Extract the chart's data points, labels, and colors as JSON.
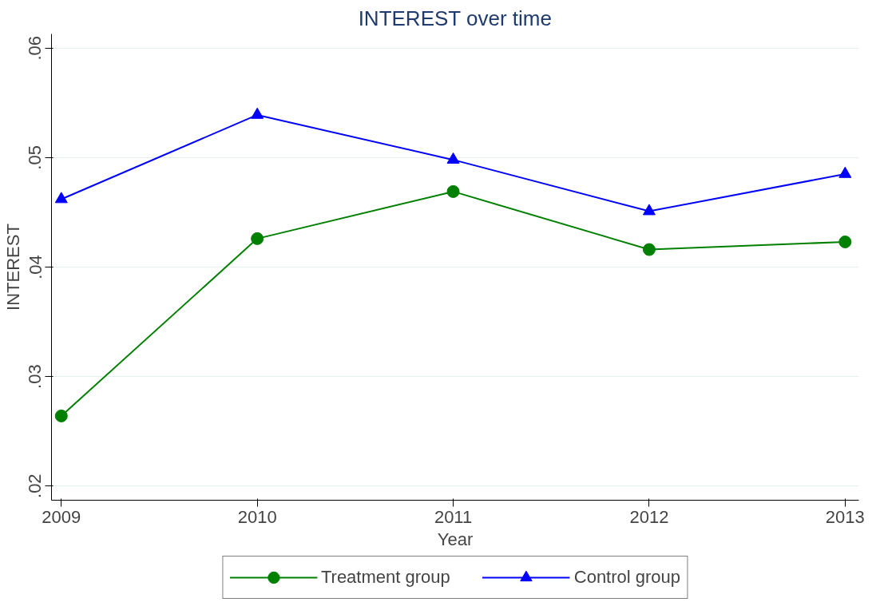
{
  "chart_data": {
    "type": "line",
    "title": "INTEREST over time",
    "xlabel": "Year",
    "ylabel": "INTEREST",
    "x": [
      2009,
      2010,
      2011,
      2012,
      2013
    ],
    "series": [
      {
        "name": "Treatment group",
        "color": "#008000",
        "marker": "circle",
        "values": [
          0.0264,
          0.0426,
          0.0469,
          0.0416,
          0.0423
        ]
      },
      {
        "name": "Control group",
        "color": "#0000ff",
        "marker": "triangle",
        "values": [
          0.0462,
          0.0539,
          0.0498,
          0.0451,
          0.0485
        ]
      }
    ],
    "xlim": [
      2008.95,
      2013.07
    ],
    "xticks": [
      2009,
      2010,
      2011,
      2012,
      2013
    ],
    "ylim": [
      0.0187,
      0.0613
    ],
    "yticks": [
      {
        "value": 0.02,
        "label": ".02"
      },
      {
        "value": 0.03,
        "label": ".03"
      },
      {
        "value": 0.04,
        "label": ".04"
      },
      {
        "value": 0.05,
        "label": ".05"
      },
      {
        "value": 0.06,
        "label": ".06"
      }
    ],
    "grid": "y",
    "legend": "bottom",
    "line_style": "solid"
  }
}
